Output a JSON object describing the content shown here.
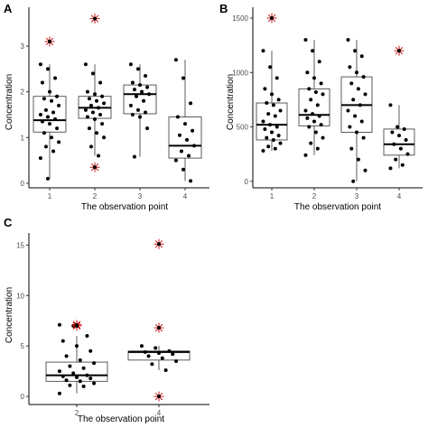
{
  "chart_data": [
    {
      "panel": "A",
      "type": "boxplot",
      "xlabel": "The observation point",
      "ylabel": "Concentration",
      "categories": [
        "1",
        "2",
        "3",
        "4"
      ],
      "yticks": [
        0,
        1,
        2,
        3
      ],
      "ylim": [
        -0.1,
        3.85
      ],
      "boxes": [
        {
          "category": "1",
          "whisker_low": 0.1,
          "q1": 1.12,
          "median": 1.38,
          "q3": 1.9,
          "whisker_high": 2.6
        },
        {
          "category": "2",
          "whisker_low": 0.6,
          "q1": 1.42,
          "median": 1.65,
          "q3": 1.9,
          "whisker_high": 2.6
        },
        {
          "category": "3",
          "whisker_low": 0.58,
          "q1": 1.52,
          "median": 1.95,
          "q3": 2.15,
          "whisker_high": 2.6
        },
        {
          "category": "4",
          "whisker_low": 0.05,
          "q1": 0.55,
          "median": 0.82,
          "q3": 1.45,
          "whisker_high": 2.7
        }
      ],
      "outliers": [
        {
          "category": "1",
          "value": 3.1
        },
        {
          "category": "2",
          "value": 3.6
        },
        {
          "category": "2",
          "value": 0.35
        }
      ],
      "points": [
        {
          "category": "1",
          "values": [
            2.6,
            2.5,
            2.3,
            2.2,
            2.0,
            1.9,
            1.85,
            1.8,
            1.7,
            1.6,
            1.55,
            1.5,
            1.45,
            1.4,
            1.35,
            1.3,
            1.2,
            1.1,
            1.0,
            0.9,
            0.8,
            0.7,
            0.55,
            0.1
          ]
        },
        {
          "category": "2",
          "values": [
            2.6,
            2.4,
            2.2,
            2.0,
            1.95,
            1.9,
            1.85,
            1.8,
            1.75,
            1.7,
            1.65,
            1.6,
            1.55,
            1.5,
            1.45,
            1.4,
            1.3,
            1.2,
            1.1,
            1.0,
            0.8,
            0.6
          ]
        },
        {
          "category": "3",
          "values": [
            2.6,
            2.5,
            2.35,
            2.2,
            2.15,
            2.1,
            2.05,
            2.0,
            1.95,
            1.9,
            1.8,
            1.7,
            1.6,
            1.55,
            1.5,
            1.45,
            1.2,
            0.58
          ]
        },
        {
          "category": "4",
          "values": [
            2.7,
            2.3,
            1.75,
            1.45,
            1.3,
            1.15,
            1.05,
            0.95,
            0.82,
            0.7,
            0.6,
            0.5,
            0.3,
            0.05
          ]
        }
      ]
    },
    {
      "panel": "B",
      "type": "boxplot",
      "xlabel": "The observation point",
      "ylabel": "Concentration",
      "categories": [
        "1",
        "2",
        "3",
        "4"
      ],
      "yticks": [
        0,
        500,
        1000,
        1500
      ],
      "ylim": [
        -60,
        1600
      ],
      "boxes": [
        {
          "category": "1",
          "whisker_low": 280,
          "q1": 380,
          "median": 520,
          "q3": 720,
          "whisker_high": 1200
        },
        {
          "category": "2",
          "whisker_low": 240,
          "q1": 510,
          "median": 610,
          "q3": 850,
          "whisker_high": 1300
        },
        {
          "category": "3",
          "whisker_low": 0,
          "q1": 450,
          "median": 700,
          "q3": 960,
          "whisker_high": 1300
        },
        {
          "category": "4",
          "whisker_low": 120,
          "q1": 240,
          "median": 340,
          "q3": 480,
          "whisker_high": 700
        }
      ],
      "outliers": [
        {
          "category": "1",
          "value": 1500
        },
        {
          "category": "4",
          "value": 1200
        }
      ],
      "points": [
        {
          "category": "1",
          "values": [
            1200,
            1050,
            950,
            850,
            800,
            750,
            720,
            700,
            650,
            620,
            600,
            550,
            520,
            500,
            480,
            450,
            420,
            400,
            380,
            350,
            320,
            300,
            280
          ]
        },
        {
          "category": "2",
          "values": [
            1300,
            1200,
            1100,
            1000,
            950,
            900,
            850,
            820,
            800,
            750,
            700,
            650,
            620,
            600,
            580,
            550,
            520,
            500,
            450,
            400,
            350,
            300,
            240
          ]
        },
        {
          "category": "3",
          "values": [
            1300,
            1200,
            1150,
            1050,
            1000,
            960,
            900,
            850,
            800,
            750,
            700,
            650,
            600,
            550,
            500,
            450,
            400,
            300,
            200,
            100,
            0
          ]
        },
        {
          "category": "4",
          "values": [
            700,
            500,
            480,
            450,
            420,
            380,
            340,
            300,
            250,
            200,
            150,
            120
          ]
        }
      ]
    },
    {
      "panel": "C",
      "type": "boxplot",
      "xlabel": "The observation point",
      "ylabel": "Concentration",
      "categories": [
        "2",
        "4"
      ],
      "yticks": [
        0,
        5,
        10,
        15
      ],
      "ylim": [
        -0.8,
        16.2
      ],
      "boxes": [
        {
          "category": "2",
          "whisker_low": 0.3,
          "q1": 1.5,
          "median": 2.1,
          "q3": 3.4,
          "whisker_high": 6.0
        },
        {
          "category": "4",
          "whisker_low": 2.6,
          "q1": 3.6,
          "median": 4.4,
          "q3": 4.5,
          "whisker_high": 5.0
        }
      ],
      "outliers": [
        {
          "category": "2",
          "value": 7.1
        },
        {
          "category": "2",
          "value": 7.0
        },
        {
          "category": "4",
          "value": 15.1
        },
        {
          "category": "4",
          "value": 6.8
        },
        {
          "category": "4",
          "value": 0.0
        }
      ],
      "points": [
        {
          "category": "2",
          "values": [
            7.1,
            7.0,
            6.0,
            5.5,
            5.0,
            4.5,
            4.0,
            3.6,
            3.3,
            3.0,
            2.8,
            2.5,
            2.3,
            2.1,
            2.0,
            1.9,
            1.8,
            1.6,
            1.5,
            1.3,
            1.1,
            1.0,
            0.3
          ]
        },
        {
          "category": "4",
          "values": [
            5.0,
            4.8,
            4.5,
            4.4,
            4.3,
            4.2,
            4.0,
            3.8,
            3.5,
            3.2,
            2.6
          ]
        }
      ]
    }
  ]
}
